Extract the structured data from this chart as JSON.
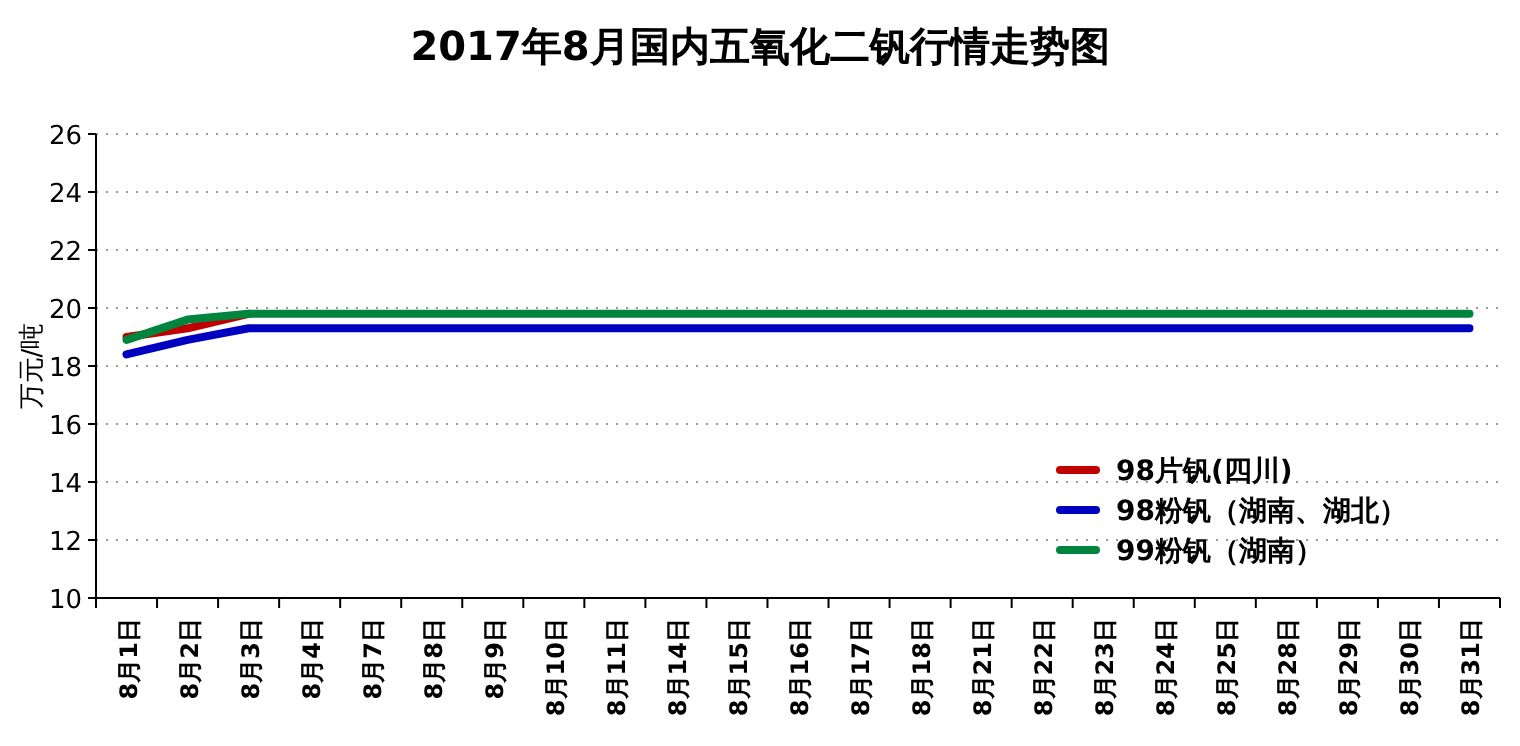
{
  "chart_data": {
    "type": "line",
    "title": "2017年8月国内五氧化二钒行情走势图",
    "ylabel": "万元/吨",
    "categories": [
      "8月1日",
      "8月2日",
      "8月3日",
      "8月4日",
      "8月7日",
      "8月8日",
      "8月9日",
      "8月10日",
      "8月11日",
      "8月14日",
      "8月15日",
      "8月16日",
      "8月17日",
      "8月18日",
      "8月21日",
      "8月22日",
      "8月23日",
      "8月24日",
      "8月25日",
      "8月28日",
      "8月29日",
      "8月30日",
      "8月31日"
    ],
    "series": [
      {
        "name": "98片钒(四川)",
        "color": "#c00000",
        "values": [
          19.0,
          19.3,
          19.8,
          null,
          null,
          null,
          null,
          null,
          null,
          null,
          null,
          null,
          null,
          null,
          null,
          null,
          null,
          null,
          null,
          null,
          null,
          null,
          null
        ]
      },
      {
        "name": "98粉钒（湖南、湖北）",
        "color": "#0000c0",
        "values": [
          18.4,
          18.9,
          19.3,
          19.3,
          19.3,
          19.3,
          19.3,
          19.3,
          19.3,
          19.3,
          19.3,
          19.3,
          19.3,
          19.3,
          19.3,
          19.3,
          19.3,
          19.3,
          19.3,
          19.3,
          19.3,
          19.3,
          19.3
        ]
      },
      {
        "name": "99粉钒（湖南）",
        "color": "#00853e",
        "values": [
          18.9,
          19.6,
          19.8,
          19.8,
          19.8,
          19.8,
          19.8,
          19.8,
          19.8,
          19.8,
          19.8,
          19.8,
          19.8,
          19.8,
          19.8,
          19.8,
          19.8,
          19.8,
          19.8,
          19.8,
          19.8,
          19.8,
          19.8
        ]
      }
    ],
    "ylim": [
      10,
      26
    ],
    "yticks": [
      10,
      12,
      14,
      16,
      18,
      20,
      22,
      24,
      26
    ],
    "grid": "y",
    "legend": "bottom right",
    "marker": "none",
    "line_style": "solid"
  }
}
